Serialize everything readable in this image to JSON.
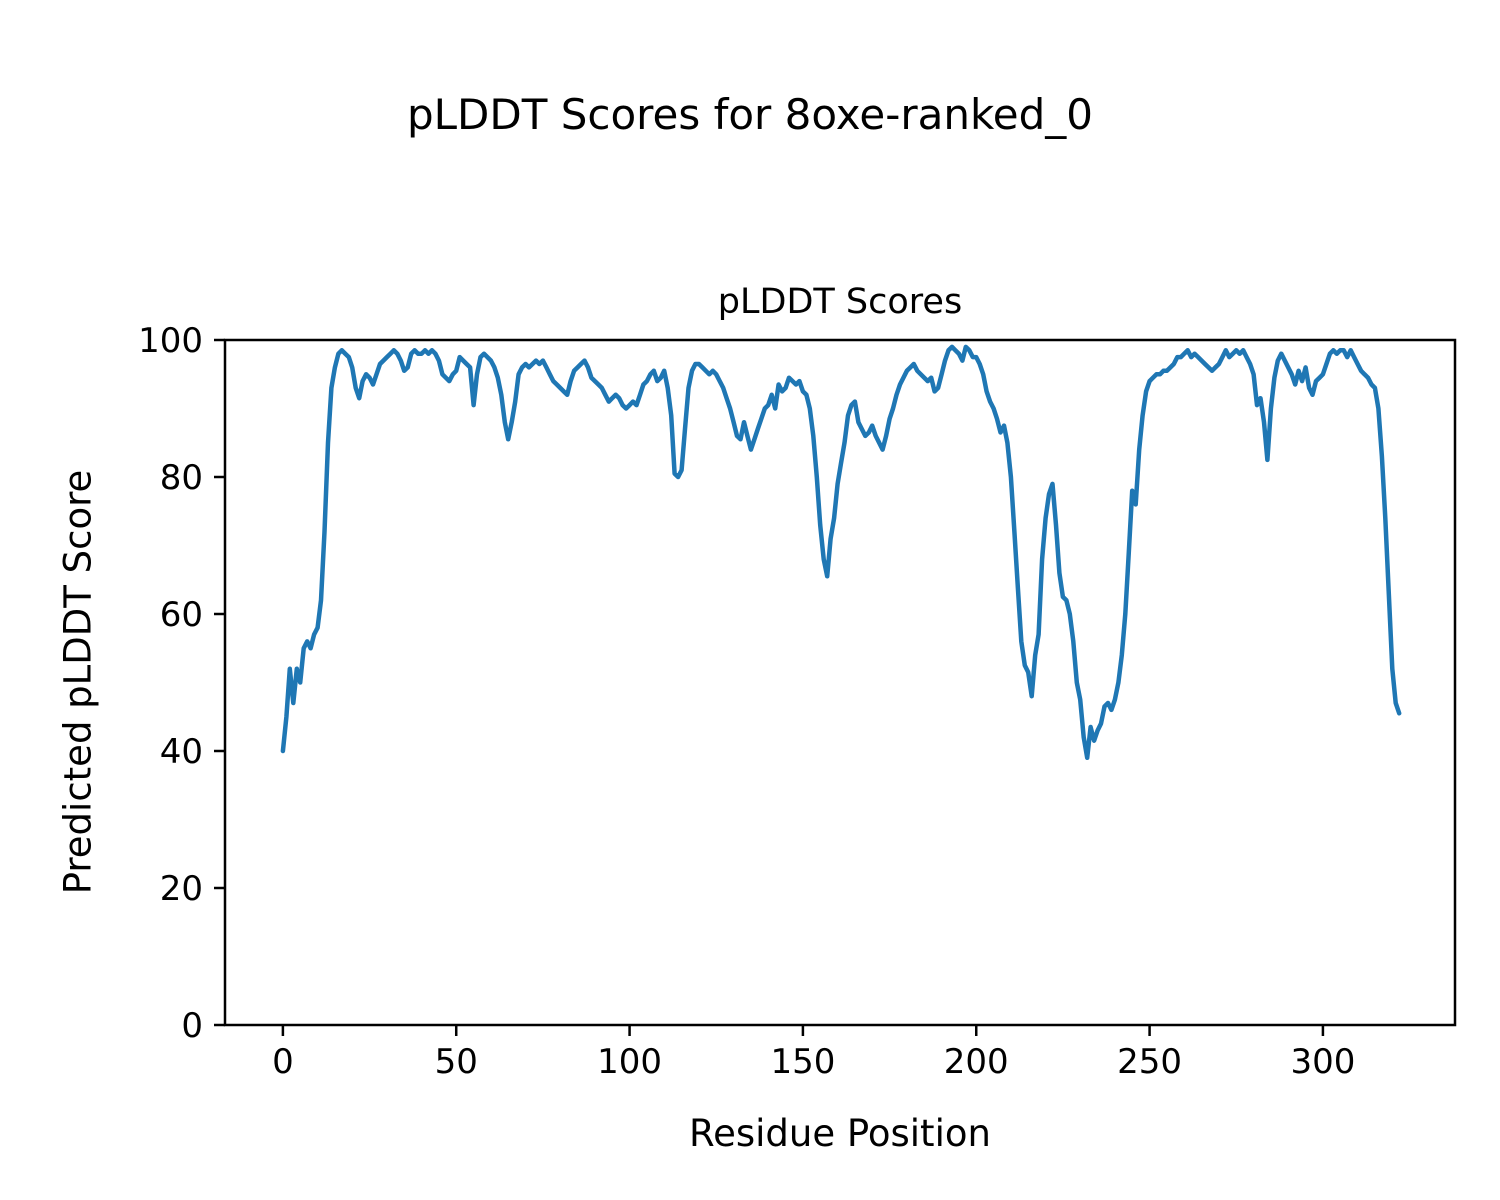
{
  "figure": {
    "title": "pLDDT Scores for 8oxe-ranked_0",
    "background": "#ffffff"
  },
  "chart_data": {
    "type": "line",
    "title": "pLDDT Scores",
    "xlabel": "Residue Position",
    "ylabel": "Predicted pLDDT Score",
    "xlim": [
      -16.7,
      338.1
    ],
    "ylim": [
      0,
      100
    ],
    "xticks": [
      0,
      50,
      100,
      150,
      200,
      250,
      300
    ],
    "yticks": [
      0,
      20,
      40,
      60,
      80,
      100
    ],
    "grid": false,
    "legend": "none",
    "line_color": "#1f77b4",
    "axis_color": "#000000",
    "series": [
      {
        "name": "pLDDT",
        "x_start": 0,
        "x_step": 1,
        "values": [
          40,
          45,
          52,
          47,
          52,
          50,
          55,
          56,
          55,
          57,
          58,
          62,
          72,
          85,
          93,
          96,
          98,
          98.5,
          98,
          97.5,
          96,
          93,
          91.5,
          94,
          95,
          94.5,
          93.5,
          95,
          96.5,
          97,
          97.5,
          98,
          98.5,
          98,
          97,
          95.5,
          96,
          98,
          98.5,
          98,
          98,
          98.5,
          98,
          98.5,
          98,
          97,
          95,
          94.5,
          94,
          95,
          95.5,
          97.5,
          97,
          96.5,
          96,
          90.5,
          95,
          97.5,
          98,
          97.5,
          97,
          96,
          94.5,
          92,
          88,
          85.5,
          88,
          91,
          95,
          96,
          96.5,
          96,
          96.5,
          97,
          96.5,
          97,
          96,
          95,
          94,
          93.5,
          93,
          92.5,
          92,
          94,
          95.5,
          96,
          96.5,
          97,
          96,
          94.5,
          94,
          93.5,
          93,
          92,
          91,
          91.5,
          92,
          91.5,
          90.5,
          90,
          90.5,
          91,
          90.5,
          92,
          93.5,
          94,
          95,
          95.5,
          94,
          94.5,
          95.5,
          93,
          89,
          80.5,
          80,
          81,
          87,
          93,
          95.5,
          96.5,
          96.5,
          96,
          95.5,
          95,
          95.5,
          95,
          94,
          93,
          91.5,
          90,
          88,
          86,
          85.5,
          88,
          86,
          84,
          85.5,
          87,
          88.5,
          90,
          90.5,
          92,
          90,
          93.5,
          92.5,
          93,
          94.5,
          94,
          93.5,
          94,
          92.5,
          92,
          90,
          86,
          80,
          73,
          68,
          65.5,
          71,
          74,
          79,
          82,
          85,
          89,
          90.5,
          91,
          88,
          87,
          86,
          86.5,
          87.5,
          86,
          85,
          84,
          86,
          88.5,
          90,
          92,
          93.5,
          94.5,
          95.5,
          96,
          96.5,
          95.5,
          95,
          94.5,
          94,
          94.5,
          92.5,
          93,
          95,
          97,
          98.5,
          99,
          98.5,
          98,
          97,
          99,
          98.5,
          97.5,
          97.5,
          96.5,
          95,
          92.5,
          91,
          90,
          88.5,
          86.5,
          87.5,
          85,
          80,
          72,
          64,
          56,
          52.5,
          51.5,
          48,
          54,
          57,
          68,
          74,
          77.5,
          79,
          73,
          66,
          62.5,
          62,
          60,
          56,
          50,
          47.5,
          42,
          39,
          43.5,
          41.5,
          43,
          44,
          46.5,
          47,
          46,
          47.5,
          50,
          54,
          60,
          69,
          78,
          76,
          84,
          89,
          92.5,
          94,
          94.5,
          95,
          95,
          95.5,
          95.5,
          96,
          96.5,
          97.5,
          97.5,
          98,
          98.5,
          97.5,
          98,
          97.5,
          97,
          96.5,
          96,
          95.5,
          96,
          96.5,
          97.5,
          98.5,
          97.5,
          98,
          98.5,
          98,
          98.5,
          97.5,
          96.5,
          95,
          90.5,
          91.5,
          88,
          82.5,
          90,
          94.5,
          97,
          98,
          97,
          96,
          95,
          93.5,
          95.5,
          94,
          96,
          93,
          92,
          94,
          94.5,
          95,
          96.5,
          98,
          98.5,
          98,
          98.5,
          98.5,
          97.5,
          98.5,
          97.5,
          96.5,
          95.5,
          95,
          94.5,
          93.5,
          93,
          90,
          83,
          74,
          63,
          52,
          47,
          45.5
        ]
      }
    ]
  }
}
